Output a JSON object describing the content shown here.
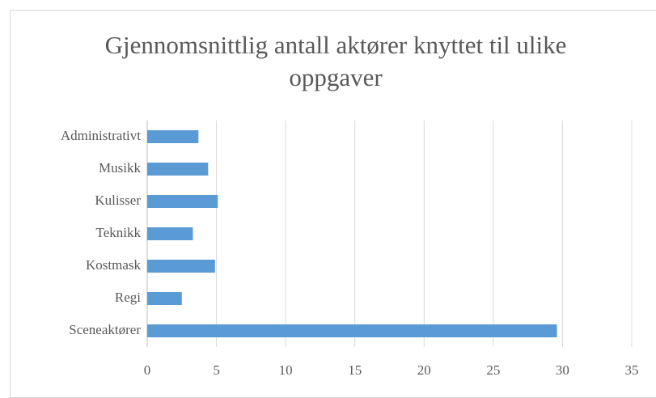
{
  "chart_data": {
    "type": "bar",
    "orientation": "horizontal",
    "title": "Gjennomsnittlig antall aktører knyttet til ulike oppgaver",
    "categories": [
      "Administrativt",
      "Musikk",
      "Kulisser",
      "Teknikk",
      "Kostmask",
      "Regi",
      "Sceneaktører"
    ],
    "values": [
      3.7,
      4.4,
      5.1,
      3.3,
      4.9,
      2.5,
      29.6
    ],
    "color": "#5b9bd5",
    "xlim": [
      0,
      35
    ],
    "xticks": [
      0,
      5,
      10,
      15,
      20,
      25,
      30,
      35
    ],
    "grid": true
  }
}
